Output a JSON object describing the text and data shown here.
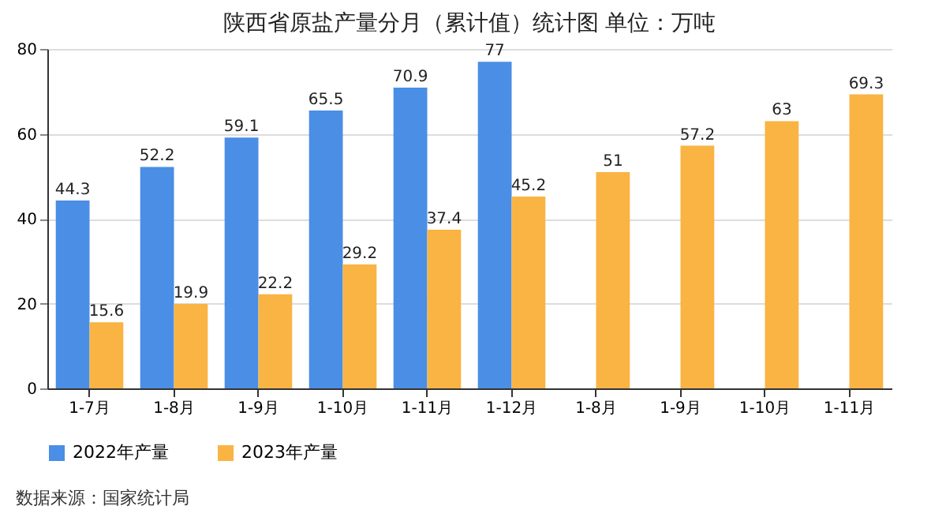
{
  "chart_data": {
    "type": "bar",
    "title": "陕西省原盐产量分月（累计值）统计图 单位：万吨",
    "categories": [
      "1-7月",
      "1-8月",
      "1-9月",
      "1-10月",
      "1-11月",
      "1-12月",
      "1-8月",
      "1-9月",
      "1-10月",
      "1-11月"
    ],
    "series": [
      {
        "name": "2022年产量",
        "color": "#4a8ee6",
        "values": [
          44.3,
          52.2,
          59.1,
          65.5,
          70.9,
          77,
          null,
          null,
          null,
          null
        ]
      },
      {
        "name": "2023年产量",
        "color": "#f9b443",
        "values": [
          15.6,
          19.9,
          22.2,
          29.2,
          37.4,
          45.2,
          51,
          57.2,
          63,
          69.3
        ]
      }
    ],
    "ylim": [
      0,
      80
    ],
    "yticks": [
      0,
      20,
      40,
      60,
      80
    ],
    "grid": "y",
    "legend": "bottom",
    "data_labels": true,
    "annotations": [
      "数据来源：国家统计局"
    ]
  }
}
